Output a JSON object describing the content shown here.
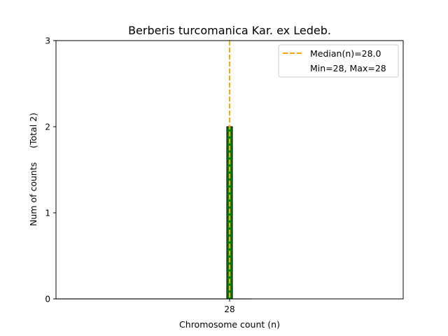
{
  "chart_data": {
    "type": "bar",
    "title": "Berberis turcomanica Kar. ex Ledeb.",
    "xlabel": "Chromosome count (n)",
    "ylabel": "Num of counts     (Total 2)",
    "xlim": [
      24,
      32
    ],
    "ylim": [
      0,
      3
    ],
    "xticks": [
      28
    ],
    "yticks": [
      0,
      1,
      2,
      3
    ],
    "bars": [
      {
        "x": 28,
        "value": 2,
        "width": 0.13
      }
    ],
    "baseline_range": [
      24,
      28.5
    ],
    "median": 28.0,
    "legend": {
      "placement": "top-right",
      "entries": [
        "Median(n)=28.0",
        "Min=28, Max=28"
      ]
    },
    "grid": false,
    "colors": {
      "bar": "#008000",
      "bar_edge": "#000000",
      "median": "#FFA500",
      "baseline": "#bbbbbb"
    }
  }
}
